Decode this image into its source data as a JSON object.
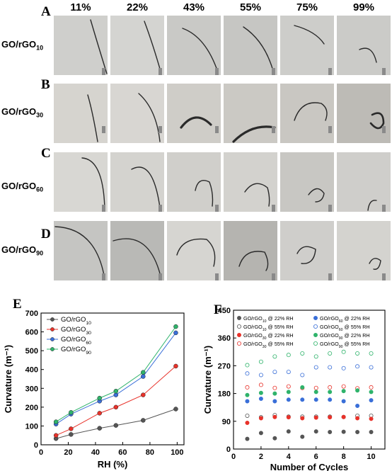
{
  "photo_grid": {
    "rh_headers": [
      "11%",
      "22%",
      "43%",
      "55%",
      "75%",
      "99%"
    ],
    "rows": [
      {
        "letter": "A",
        "label_main": "GO/rGO",
        "label_sub": "10",
        "bg": [
          "#cfcfcc",
          "#d4d4d1",
          "#c9c9c6",
          "#c6c6c3",
          "#cdcdca",
          "#cbcbc8"
        ]
      },
      {
        "letter": "B",
        "label_main": "GO/rGO",
        "label_sub": "30",
        "bg": [
          "#d6d4cf",
          "#d8d6d2",
          "#cfcdc8",
          "#cbc9c4",
          "#c9c7c2",
          "#bdbbb6"
        ]
      },
      {
        "letter": "C",
        "label_main": "GO/rGO",
        "label_sub": "60",
        "bg": [
          "#d8d7d3",
          "#d4d3cf",
          "#d0cfcb",
          "#d3d2ce",
          "#c8c7c3",
          "#cfcecb"
        ]
      },
      {
        "letter": "D",
        "label_main": "GO/rGO",
        "label_sub": "90",
        "bg": [
          "#c5c5c2",
          "#b9b9b6",
          "#d6d5d1",
          "#b5b4b0",
          "#cfcecb",
          "#d4d3cf"
        ]
      }
    ]
  },
  "chart_data": [
    {
      "panel": "E",
      "type": "line",
      "xlabel": "RH (%)",
      "ylabel": "Curvature (m⁻¹)",
      "xlim": [
        0,
        105
      ],
      "ylim": [
        0,
        700
      ],
      "xticks": [
        0,
        20,
        40,
        60,
        80,
        100
      ],
      "yticks": [
        0,
        100,
        200,
        300,
        400,
        500,
        600,
        700
      ],
      "x": [
        11,
        22,
        43,
        55,
        75,
        99
      ],
      "legend_position": "top-left",
      "series": [
        {
          "name_main": "GO/rGO",
          "name_sub": "10",
          "color": "#555555",
          "values": [
            33,
            55,
            88,
            103,
            130,
            190
          ]
        },
        {
          "name_main": "GO/rGO",
          "name_sub": "30",
          "color": "#e8322a",
          "values": [
            50,
            85,
            168,
            200,
            265,
            418
          ]
        },
        {
          "name_main": "GO/rGO",
          "name_sub": "60",
          "color": "#3a6fd8",
          "values": [
            110,
            163,
            232,
            265,
            363,
            595
          ]
        },
        {
          "name_main": "GO/rGO",
          "name_sub": "90",
          "color": "#2fb36b",
          "values": [
            122,
            172,
            248,
            285,
            385,
            628
          ]
        }
      ]
    },
    {
      "panel": "F",
      "type": "scatter",
      "xlabel": "Number of Cycles",
      "ylabel": "Curvature (m⁻¹)",
      "xlim": [
        0,
        11
      ],
      "ylim": [
        0,
        450
      ],
      "xticks": [
        0,
        2,
        4,
        6,
        8,
        10
      ],
      "yticks": [
        0,
        90,
        180,
        270,
        360,
        450
      ],
      "x": [
        1,
        2,
        3,
        4,
        5,
        6,
        7,
        8,
        9,
        10
      ],
      "legend_position": "top",
      "series": [
        {
          "name_main": "GO/rGO",
          "name_sub": "10",
          "name_tail": " @ 22% RH",
          "color": "#555555",
          "filled": true,
          "values": [
            33,
            52,
            35,
            57,
            40,
            57,
            55,
            56,
            55,
            55
          ]
        },
        {
          "name_main": "GO/rGO",
          "name_sub": "10",
          "name_tail": " @ 55% RH",
          "color": "#555555",
          "filled": false,
          "values": [
            108,
            103,
            110,
            105,
            105,
            105,
            105,
            104,
            108,
            108
          ]
        },
        {
          "name_main": "GO/rGO",
          "name_sub": "30",
          "name_tail": " @ 22% RH",
          "color": "#e8322a",
          "filled": true,
          "values": [
            85,
            100,
            104,
            103,
            100,
            102,
            103,
            104,
            100,
            98
          ]
        },
        {
          "name_main": "GO/rGO",
          "name_sub": "30",
          "name_tail": " @ 55% RH",
          "color": "#e8322a",
          "filled": false,
          "values": [
            200,
            208,
            198,
            203,
            198,
            198,
            200,
            203,
            197,
            200
          ]
        },
        {
          "name_main": "GO/rGO",
          "name_sub": "60",
          "name_tail": " @ 22% RH",
          "color": "#3a6fd8",
          "filled": true,
          "values": [
            155,
            163,
            155,
            160,
            160,
            160,
            160,
            155,
            140,
            158
          ]
        },
        {
          "name_main": "GO/rGO",
          "name_sub": "60",
          "name_tail": " @ 55% RH",
          "color": "#3a6fd8",
          "filled": false,
          "values": [
            245,
            240,
            250,
            250,
            240,
            265,
            265,
            262,
            268,
            265
          ]
        },
        {
          "name_main": "GO/rGO",
          "name_sub": "90",
          "name_tail": " @ 22% RH",
          "color": "#2fb36b",
          "filled": true,
          "values": [
            175,
            182,
            180,
            185,
            200,
            185,
            185,
            188,
            190,
            185
          ]
        },
        {
          "name_main": "GO/rGO",
          "name_sub": "90",
          "name_tail": " @ 55% RH",
          "color": "#2fb36b",
          "filled": false,
          "values": [
            272,
            283,
            300,
            305,
            310,
            300,
            310,
            315,
            310,
            310
          ]
        }
      ]
    }
  ]
}
